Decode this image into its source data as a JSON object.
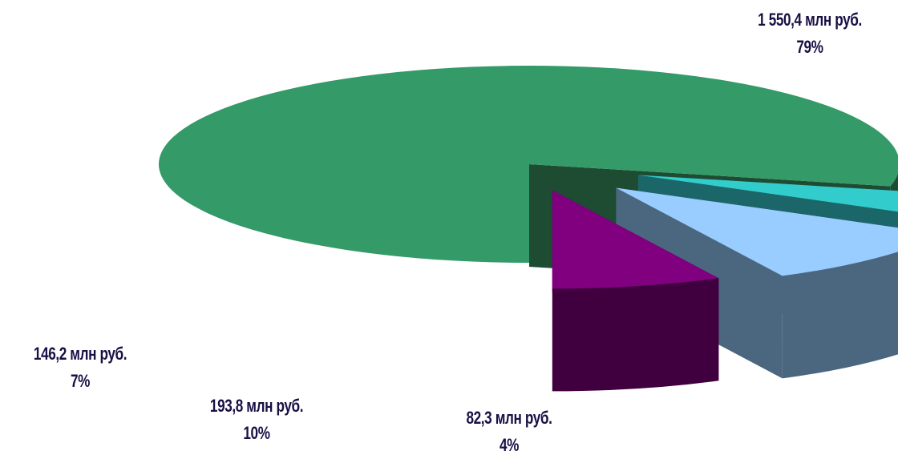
{
  "chart_data": {
    "type": "pie",
    "style": "3d-exploded",
    "slices": [
      {
        "value": 1550.4,
        "label": "1 550,4 млн руб.",
        "percent": "79%",
        "top_color": "#339a68",
        "side_color": "#1d4c33"
      },
      {
        "value": 82.3,
        "label": "82,3 млн руб.",
        "percent": "4%",
        "top_color": "#33cccc",
        "side_color": "#1b6668"
      },
      {
        "value": 193.8,
        "label": "193,8 млн руб.",
        "percent": "10%",
        "top_color": "#99ccff",
        "side_color": "#4b667f"
      },
      {
        "value": 146.2,
        "label": "146,2 млн руб.",
        "percent": "7%",
        "top_color": "#800080",
        "side_color": "#40003f"
      }
    ]
  }
}
